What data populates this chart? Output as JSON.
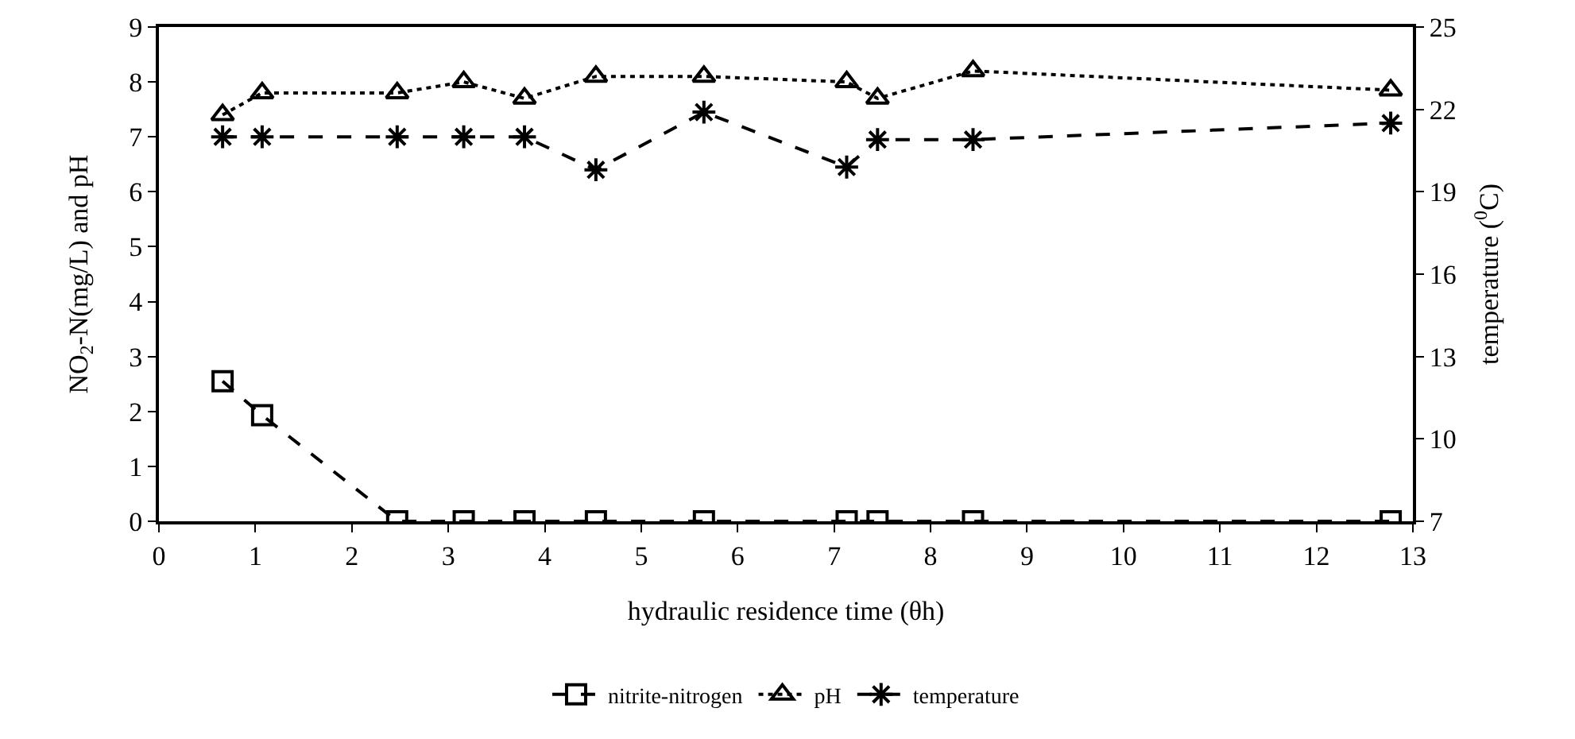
{
  "chart_data": {
    "type": "line",
    "xlabel": "hydraulic residence time (θh)",
    "ylabel": "NO$_{2}$-N(mg/L) and pH",
    "y2label": "temperature ($^{0}$C)",
    "x": [
      0.66,
      1.07,
      2.47,
      3.16,
      3.79,
      4.53,
      5.65,
      7.13,
      7.45,
      8.44,
      12.77
    ],
    "series": [
      {
        "name": "nitrite-nitrogen",
        "color": "#000000",
        "marker": "square",
        "line_style": "dashed",
        "values": [
          2.55,
          1.93,
          0,
          0,
          0,
          0,
          0,
          0,
          0,
          0,
          0
        ]
      },
      {
        "name": "pH",
        "color": "#000000",
        "marker": "triangle",
        "line_style": "dotted",
        "values": [
          7.4,
          7.8,
          7.8,
          8.0,
          7.7,
          8.1,
          8.1,
          8.0,
          7.7,
          8.2,
          7.85
        ]
      },
      {
        "name": "temperature",
        "color": "#000000",
        "marker": "cross",
        "line_style": "dashed",
        "axis": "y2",
        "values": [
          21,
          21,
          21,
          21,
          21,
          19.8,
          21.9,
          19.9,
          20.9,
          20.9,
          21.5
        ]
      }
    ],
    "xlim": [
      0,
      13
    ],
    "xticks": [
      0,
      1,
      2,
      3,
      4,
      5,
      6,
      7,
      8,
      9,
      10,
      11,
      12,
      13
    ],
    "ylim": [
      0,
      9
    ],
    "yticks": [
      0,
      1,
      2,
      3,
      4,
      5,
      6,
      7,
      8,
      9
    ],
    "y2lim": [
      7,
      25
    ],
    "y2ticks": [
      7,
      10,
      13,
      16,
      19,
      22,
      25
    ],
    "grid": false,
    "legend": "bottom"
  }
}
